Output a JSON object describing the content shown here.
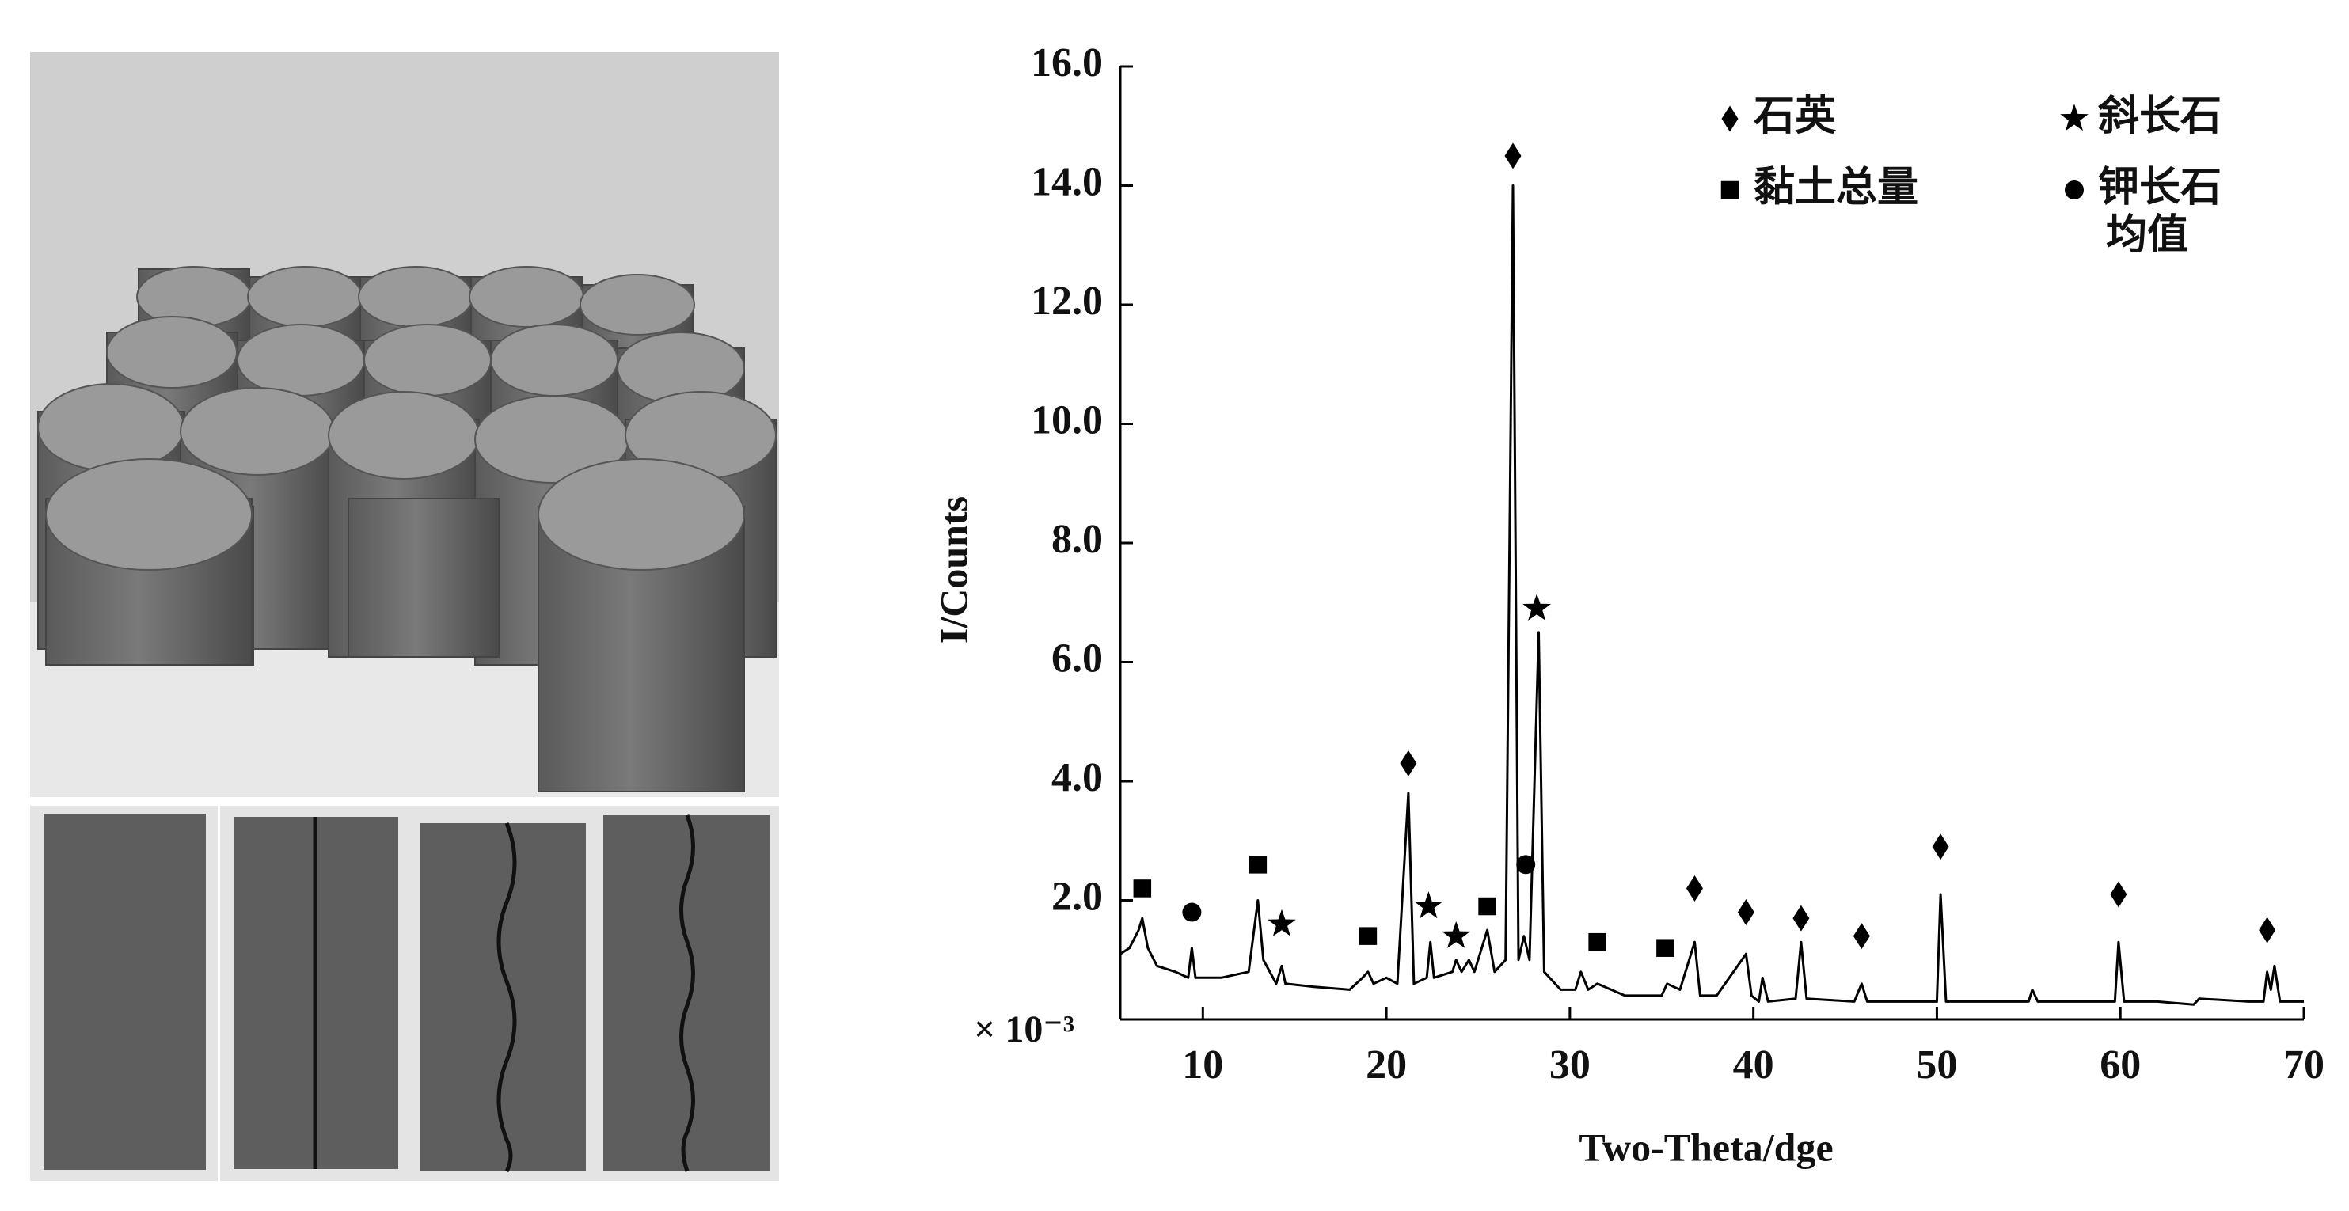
{
  "chart_data": {
    "type": "line",
    "xlabel": "Two-Theta/dge",
    "ylabel": "I/Counts",
    "unit_label": "× 10⁻³",
    "xlim": [
      5.5,
      70
    ],
    "xticks": [
      10,
      20,
      30,
      40,
      50,
      60,
      70
    ],
    "ylim": [
      0,
      16
    ],
    "yticks": [
      {
        "value": 2,
        "label": "2.0"
      },
      {
        "value": 4,
        "label": "4.0"
      },
      {
        "value": 6,
        "label": "6.0"
      },
      {
        "value": 8,
        "label": "8.0"
      },
      {
        "value": 10,
        "label": "10.0"
      },
      {
        "value": 12,
        "label": "12.0"
      },
      {
        "value": 14,
        "label": "14.0"
      },
      {
        "value": 16,
        "label": "16.0"
      }
    ],
    "series": [
      {
        "color": "#000000",
        "x": [
          5.5,
          6.0,
          6.5,
          6.7,
          7.0,
          7.5,
          8.5,
          9.2,
          9.4,
          9.6,
          11,
          12.5,
          13.0,
          13.3,
          14.0,
          14.3,
          14.5,
          16,
          18,
          18.7,
          19.0,
          19.3,
          20.0,
          20.6,
          21.2,
          21.5,
          22.2,
          22.4,
          22.6,
          23.6,
          23.8,
          24.1,
          24.5,
          24.8,
          25.5,
          25.9,
          26.5,
          26.9,
          27.2,
          27.5,
          27.8,
          28.3,
          28.6,
          29.5,
          30.3,
          30.6,
          31,
          31.5,
          33,
          35,
          35.3,
          36,
          36.8,
          37.1,
          38,
          39.6,
          39.9,
          40.3,
          40.5,
          40.8,
          42.3,
          42.6,
          42.9,
          45.5,
          45.9,
          46.2,
          48,
          50,
          50.2,
          50.5,
          51.5,
          55,
          55.2,
          55.5,
          58,
          59.7,
          59.9,
          60.2,
          62,
          64,
          64.3,
          67,
          67.8,
          68.0,
          68.2,
          68.4,
          68.7,
          70
        ],
        "values": [
          1.1,
          1.2,
          1.5,
          1.7,
          1.2,
          0.9,
          0.8,
          0.7,
          1.2,
          0.7,
          0.7,
          0.8,
          2.0,
          1.0,
          0.6,
          0.9,
          0.6,
          0.55,
          0.5,
          0.7,
          0.8,
          0.6,
          0.7,
          0.6,
          3.8,
          0.6,
          0.7,
          1.3,
          0.7,
          0.8,
          1.0,
          0.8,
          1.0,
          0.8,
          1.5,
          0.8,
          1.0,
          14.0,
          1.0,
          1.4,
          1.0,
          6.5,
          0.8,
          0.5,
          0.5,
          0.8,
          0.5,
          0.6,
          0.4,
          0.4,
          0.6,
          0.5,
          1.3,
          0.4,
          0.4,
          1.1,
          0.4,
          0.3,
          0.7,
          0.3,
          0.35,
          1.3,
          0.35,
          0.3,
          0.6,
          0.3,
          0.3,
          0.3,
          2.1,
          0.3,
          0.3,
          0.3,
          0.5,
          0.3,
          0.3,
          0.3,
          1.3,
          0.3,
          0.3,
          0.25,
          0.35,
          0.3,
          0.3,
          0.8,
          0.5,
          0.9,
          0.3,
          0.3
        ]
      }
    ],
    "markers": [
      {
        "name": "石英",
        "symbol": "diamond",
        "x": [
          21.2,
          26.9,
          36.8,
          39.6,
          42.6,
          45.9,
          50.2,
          59.9,
          68.0
        ],
        "y": [
          4.3,
          14.5,
          2.2,
          1.8,
          1.7,
          1.4,
          2.9,
          2.1,
          1.5
        ]
      },
      {
        "name": "黏土总量",
        "symbol": "square",
        "x": [
          6.7,
          13.0,
          19.0,
          25.5,
          31.5,
          35.2
        ],
        "y": [
          2.2,
          2.6,
          1.4,
          1.9,
          1.3,
          1.2
        ]
      },
      {
        "name": "斜长石",
        "symbol": "star",
        "x": [
          14.3,
          22.3,
          23.8,
          28.2
        ],
        "y": [
          1.6,
          1.9,
          1.4,
          6.9
        ]
      },
      {
        "name": "钾长石",
        "symbol": "circle",
        "x": [
          9.4,
          27.6
        ],
        "y": [
          1.8,
          2.6
        ]
      }
    ],
    "legend_note": "均值"
  }
}
